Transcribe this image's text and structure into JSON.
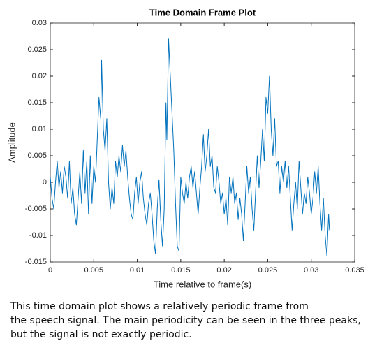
{
  "chart_data": {
    "type": "line",
    "title": "Time Domain Frame Plot",
    "xlabel": "Time relative to frame(s)",
    "ylabel": "Amplitude",
    "xlim": [
      0,
      0.035
    ],
    "xticks": [
      0,
      0.005,
      0.01,
      0.015,
      0.02,
      0.025,
      0.03,
      0.035
    ],
    "ylim": [
      -0.015,
      0.03
    ],
    "yticks": [
      -0.015,
      -0.01,
      -0.005,
      0,
      0.005,
      0.01,
      0.015,
      0.02,
      0.025,
      0.03
    ],
    "color": "#0072bd",
    "x": [
      0,
      0.0002,
      0.0004,
      0.0006,
      0.0008,
      0.001,
      0.0012,
      0.0014,
      0.0016,
      0.0018,
      0.002,
      0.0022,
      0.0024,
      0.0026,
      0.0028,
      0.003,
      0.0032,
      0.0034,
      0.0036,
      0.0038,
      0.004,
      0.0042,
      0.0044,
      0.0046,
      0.0048,
      0.005,
      0.0052,
      0.0054,
      0.0056,
      0.0058,
      0.0059,
      0.0061,
      0.0063,
      0.0065,
      0.0067,
      0.0069,
      0.0071,
      0.0073,
      0.0075,
      0.0077,
      0.0079,
      0.0081,
      0.0083,
      0.0085,
      0.0087,
      0.0089,
      0.0091,
      0.0093,
      0.0095,
      0.0097,
      0.0099,
      0.0101,
      0.0103,
      0.0105,
      0.0107,
      0.0109,
      0.0111,
      0.0113,
      0.0115,
      0.0117,
      0.0119,
      0.0121,
      0.0123,
      0.0125,
      0.0127,
      0.0129,
      0.0131,
      0.0133,
      0.0134,
      0.0136,
      0.0138,
      0.014,
      0.0142,
      0.0144,
      0.0146,
      0.0148,
      0.015,
      0.0152,
      0.0154,
      0.0156,
      0.0158,
      0.016,
      0.0162,
      0.0164,
      0.0166,
      0.0168,
      0.017,
      0.0172,
      0.0174,
      0.0176,
      0.0178,
      0.018,
      0.0182,
      0.0184,
      0.0186,
      0.0188,
      0.019,
      0.0192,
      0.0194,
      0.0196,
      0.0198,
      0.02,
      0.0202,
      0.0204,
      0.0206,
      0.0208,
      0.021,
      0.0212,
      0.0214,
      0.0216,
      0.0218,
      0.022,
      0.0222,
      0.0224,
      0.0226,
      0.0228,
      0.023,
      0.0232,
      0.0234,
      0.0236,
      0.0238,
      0.024,
      0.0242,
      0.0244,
      0.0246,
      0.0248,
      0.025,
      0.0252,
      0.0254,
      0.0256,
      0.0258,
      0.026,
      0.0262,
      0.0264,
      0.0266,
      0.0268,
      0.027,
      0.0272,
      0.0274,
      0.0276,
      0.0278,
      0.028,
      0.0282,
      0.0284,
      0.0286,
      0.0288,
      0.029,
      0.0292,
      0.0294,
      0.0296,
      0.0298,
      0.03,
      0.0302,
      0.0304,
      0.0306,
      0.0308,
      0.031,
      0.0312,
      0.0314,
      0.0316,
      0.0318,
      0.032,
      0.0321
    ],
    "values": [
      0.001,
      -0.003,
      -0.005,
      0.0,
      0.004,
      -0.001,
      0.002,
      -0.002,
      0.003,
      0.001,
      -0.003,
      0.004,
      -0.004,
      -0.001,
      -0.006,
      -0.008,
      -0.003,
      0.002,
      -0.004,
      0.006,
      -0.002,
      0.004,
      -0.006,
      0.005,
      -0.004,
      0.003,
      0.0,
      0.008,
      0.016,
      0.012,
      0.023,
      0.01,
      0.006,
      0.012,
      0.0,
      -0.005,
      -0.001,
      -0.004,
      0.004,
      0.001,
      0.005,
      0.002,
      0.007,
      0.003,
      0.006,
      0.001,
      -0.003,
      -0.006,
      -0.007,
      -0.002,
      0.001,
      -0.004,
      0.0,
      0.002,
      -0.003,
      -0.006,
      -0.008,
      -0.004,
      -0.002,
      -0.006,
      -0.011,
      -0.0135,
      -0.005,
      0.0005,
      -0.007,
      -0.012,
      -0.005,
      0.015,
      0.008,
      0.027,
      0.02,
      0.013,
      0.006,
      -0.004,
      -0.012,
      -0.013,
      0.001,
      -0.002,
      -0.004,
      0.0,
      -0.003,
      0.001,
      0.003,
      -0.001,
      0.002,
      -0.002,
      -0.006,
      -0.001,
      0.003,
      0.009,
      0.002,
      0.005,
      0.01,
      0.003,
      0.005,
      -0.001,
      -0.002,
      0.003,
      0.0,
      -0.004,
      -0.002,
      -0.006,
      -0.003,
      -0.008,
      0.001,
      -0.002,
      0.001,
      -0.004,
      -0.002,
      -0.007,
      -0.003,
      -0.006,
      -0.011,
      -0.004,
      0.003,
      -0.002,
      0.001,
      -0.005,
      -0.009,
      -0.002,
      0.005,
      -0.001,
      0.004,
      0.01,
      0.004,
      0.016,
      0.013,
      0.02,
      0.01,
      0.005,
      0.012,
      0.003,
      0.004,
      -0.002,
      0.003,
      0.0,
      0.004,
      -0.001,
      0.003,
      -0.003,
      -0.009,
      -0.004,
      0.0,
      -0.005,
      0.004,
      -0.001,
      -0.006,
      -0.002,
      -0.004,
      0.001,
      -0.002,
      -0.006,
      -0.003,
      0.002,
      -0.002,
      0.003,
      -0.004,
      -0.009,
      -0.003,
      -0.01,
      -0.0138,
      -0.006,
      -0.009
    ]
  },
  "caption": [
    "This time domain plot shows a relatively periodic frame from",
    "the speech signal. The main periodicity can be seen in the three peaks,",
    "but the signal is not exactly periodic."
  ]
}
